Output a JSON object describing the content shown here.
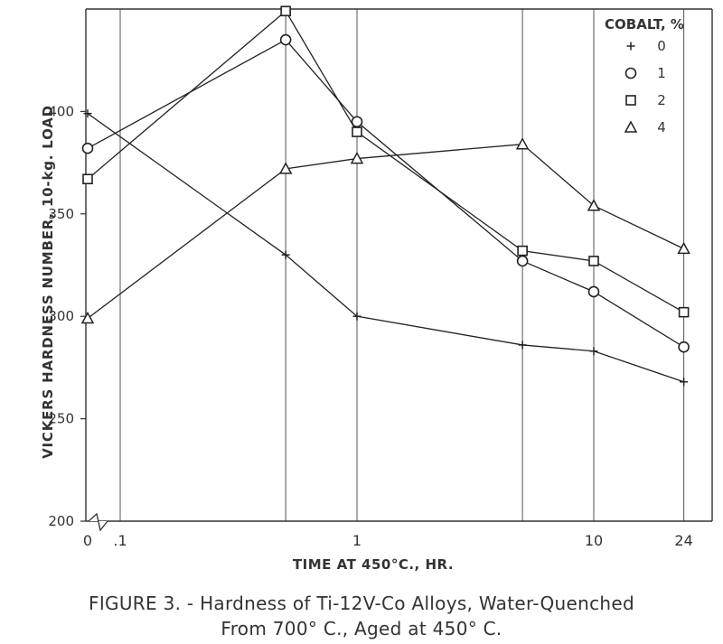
{
  "chart_data": {
    "type": "line",
    "title": "",
    "xlabel": "TIME AT 450°C., HR.",
    "ylabel": "VICKERS HARDNESS NUMBER, 10-kg. LOAD",
    "x_scale": "log, with broken axis at 0",
    "x_tick_labels": [
      "0",
      ".1",
      "1",
      "10",
      "24"
    ],
    "y_ticks": [
      200,
      250,
      300,
      350,
      400
    ],
    "ylim": [
      200,
      450
    ],
    "grid": "vertical lines only",
    "legend_title": "COBALT, %",
    "legend_position": "top-right",
    "x": [
      0,
      0.5,
      1,
      5,
      10,
      24
    ],
    "series": [
      {
        "name": "0",
        "marker": "plus",
        "values": [
          399,
          330,
          300,
          286,
          283,
          268
        ]
      },
      {
        "name": "1",
        "marker": "circle",
        "values": [
          382,
          435,
          395,
          327,
          312,
          285
        ]
      },
      {
        "name": "2",
        "marker": "square",
        "values": [
          367,
          449,
          390,
          332,
          327,
          302
        ]
      },
      {
        "name": "4",
        "marker": "triangle",
        "values": [
          299,
          372,
          377,
          384,
          354,
          333
        ]
      }
    ]
  },
  "caption": {
    "line1": "FIGURE 3. - Hardness of Ti-12V-Co Alloys, Water-Quenched",
    "line2": "From 700° C., Aged at 450° C."
  }
}
